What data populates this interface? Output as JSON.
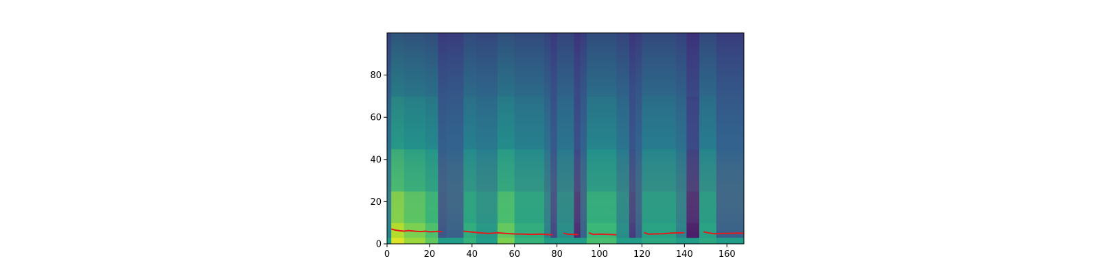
{
  "chart_data": {
    "type": "heatmap",
    "title": "",
    "xlabel": "",
    "ylabel": "",
    "xlim": [
      0,
      168
    ],
    "ylim": [
      0,
      100
    ],
    "x_ticks": [
      "0",
      "20",
      "40",
      "60",
      "80",
      "100",
      "120",
      "140",
      "160"
    ],
    "y_ticks": [
      "0",
      "20",
      "40",
      "60",
      "80"
    ],
    "grid": false,
    "colormap": "viridis",
    "overlay_color": "#e41a1c",
    "heatmap": {
      "frames": 168,
      "bins": 100,
      "columns": [
        {
          "x0": 0,
          "x1": 2,
          "level": 0.45
        },
        {
          "x0": 2,
          "x1": 8,
          "level": 0.95
        },
        {
          "x0": 8,
          "x1": 18,
          "level": 0.85
        },
        {
          "x0": 18,
          "x1": 24,
          "level": 0.75
        },
        {
          "x0": 24,
          "x1": 28,
          "level": 0.25
        },
        {
          "x0": 28,
          "x1": 36,
          "level": 0.3
        },
        {
          "x0": 36,
          "x1": 42,
          "level": 0.65
        },
        {
          "x0": 42,
          "x1": 52,
          "level": 0.55
        },
        {
          "x0": 52,
          "x1": 60,
          "level": 0.8
        },
        {
          "x0": 60,
          "x1": 74,
          "level": 0.65
        },
        {
          "x0": 74,
          "x1": 77,
          "level": 0.45
        },
        {
          "x0": 77,
          "x1": 80,
          "level": 0.2
        },
        {
          "x0": 80,
          "x1": 88,
          "level": 0.5
        },
        {
          "x0": 88,
          "x1": 91,
          "level": 0.1
        },
        {
          "x0": 91,
          "x1": 94,
          "level": 0.3
        },
        {
          "x0": 94,
          "x1": 108,
          "level": 0.7
        },
        {
          "x0": 108,
          "x1": 114,
          "level": 0.5
        },
        {
          "x0": 114,
          "x1": 117,
          "level": 0.15
        },
        {
          "x0": 117,
          "x1": 120,
          "level": 0.3
        },
        {
          "x0": 120,
          "x1": 136,
          "level": 0.6
        },
        {
          "x0": 136,
          "x1": 141,
          "level": 0.45
        },
        {
          "x0": 141,
          "x1": 147,
          "level": 0.05
        },
        {
          "x0": 147,
          "x1": 155,
          "level": 0.6
        },
        {
          "x0": 155,
          "x1": 168,
          "level": 0.3
        }
      ]
    },
    "series": [
      {
        "x": [
          2,
          4,
          6,
          8,
          10,
          12,
          14,
          16,
          18,
          20,
          22,
          24,
          26
        ],
        "y": [
          7.0,
          6.5,
          6.2,
          6.0,
          6.3,
          6.1,
          5.9,
          5.8,
          6.0,
          5.7,
          5.8,
          5.9,
          5.7
        ]
      },
      {
        "x": [
          36,
          40,
          44,
          48,
          52,
          56,
          60,
          64,
          68,
          72,
          76,
          78
        ],
        "y": [
          6.0,
          5.6,
          5.2,
          4.9,
          5.3,
          4.9,
          4.7,
          4.6,
          4.5,
          4.6,
          4.4,
          4.3
        ]
      },
      {
        "x": [
          83,
          85,
          87,
          90
        ],
        "y": [
          5.1,
          4.6,
          4.5,
          4.4
        ]
      },
      {
        "x": [
          95,
          97,
          100,
          104,
          108
        ],
        "y": [
          5.2,
          4.5,
          4.6,
          4.5,
          4.3
        ]
      },
      {
        "x": [
          121,
          123,
          126,
          130,
          134,
          137,
          140
        ],
        "y": [
          5.4,
          4.6,
          4.7,
          4.8,
          5.1,
          5.2,
          5.3
        ]
      },
      {
        "x": [
          149,
          151,
          154,
          158,
          162,
          166,
          168
        ],
        "y": [
          5.7,
          5.3,
          4.8,
          4.9,
          5.0,
          5.1,
          5.0
        ]
      }
    ]
  }
}
